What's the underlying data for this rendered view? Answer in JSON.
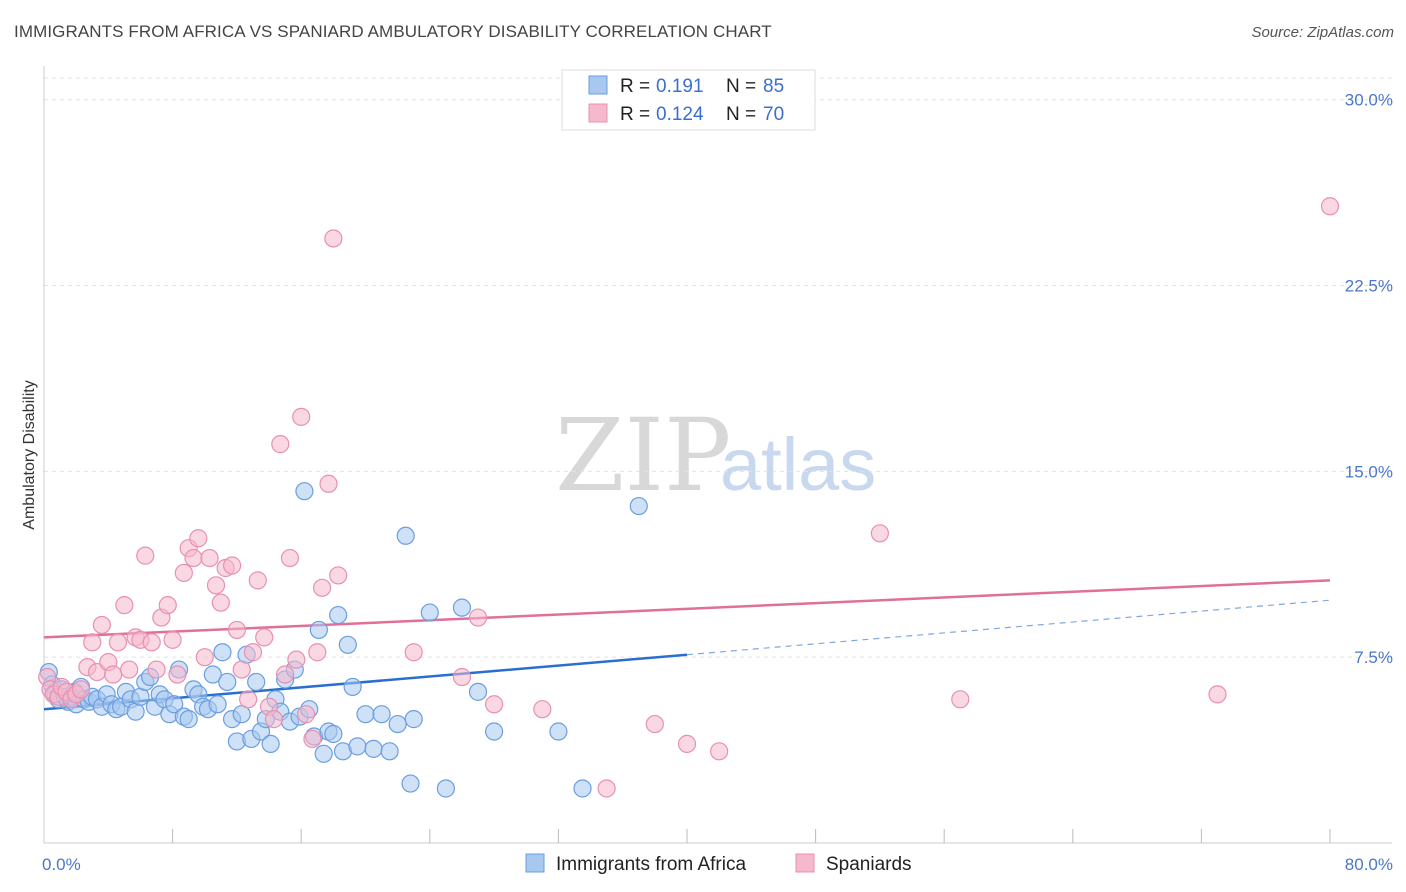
{
  "header": {
    "title": "IMMIGRANTS FROM AFRICA VS SPANIARD AMBULATORY DISABILITY CORRELATION CHART",
    "source": "Source: ZipAtlas.com"
  },
  "watermark": {
    "zip": "ZIP",
    "atlas": "atlas"
  },
  "legend": {
    "rows": [
      {
        "r_label": "R = ",
        "r_value": "0.191",
        "n_label": "N = ",
        "n_value": "85",
        "color": "#a8c8f0"
      },
      {
        "r_label": "R = ",
        "r_value": "0.124",
        "n_label": "N = ",
        "n_value": "70",
        "color": "#f5b8cc"
      }
    ]
  },
  "chart_data": {
    "type": "scatter",
    "title": "IMMIGRANTS FROM AFRICA VS SPANIARD AMBULATORY DISABILITY CORRELATION CHART",
    "xlabel": "",
    "ylabel": "Ambulatory Disability",
    "xlim": [
      0,
      80
    ],
    "ylim": [
      0,
      31.2
    ],
    "x_tick_labels": [
      {
        "value": 0,
        "label": "0.0%"
      },
      {
        "value": 80,
        "label": "80.0%"
      }
    ],
    "y_ticks": [
      {
        "value": 7.5,
        "label": "7.5%"
      },
      {
        "value": 15.0,
        "label": "15.0%"
      },
      {
        "value": 22.5,
        "label": "22.5%"
      },
      {
        "value": 30.0,
        "label": "30.0%"
      }
    ],
    "x_minor_ticks": [
      8,
      16,
      24,
      32,
      40,
      48,
      56,
      64,
      72,
      80
    ],
    "grid": true,
    "series": [
      {
        "name": "Immigrants from Africa",
        "color": "#a8c8f0",
        "stroke": "#6a9ee0",
        "trend": {
          "x0": 0,
          "y0": 5.4,
          "x1": 40,
          "y1": 7.6,
          "solid_until": 40,
          "extend_to": 80,
          "y_end": 9.8,
          "color": "#2a6fcf"
        },
        "points": [
          [
            0.3,
            6.9
          ],
          [
            0.5,
            6.4
          ],
          [
            0.7,
            6.0
          ],
          [
            0.9,
            5.8
          ],
          [
            1.1,
            6.2
          ],
          [
            1.3,
            5.9
          ],
          [
            1.5,
            5.7
          ],
          [
            1.7,
            5.9
          ],
          [
            1.9,
            6.1
          ],
          [
            2.0,
            5.6
          ],
          [
            2.3,
            6.3
          ],
          [
            2.5,
            5.8
          ],
          [
            2.8,
            5.7
          ],
          [
            3.0,
            5.9
          ],
          [
            3.3,
            5.8
          ],
          [
            3.6,
            5.5
          ],
          [
            3.9,
            6.0
          ],
          [
            4.2,
            5.6
          ],
          [
            4.5,
            5.4
          ],
          [
            4.8,
            5.5
          ],
          [
            5.1,
            6.1
          ],
          [
            5.4,
            5.8
          ],
          [
            5.7,
            5.3
          ],
          [
            6.0,
            5.9
          ],
          [
            6.3,
            6.5
          ],
          [
            6.6,
            6.7
          ],
          [
            6.9,
            5.5
          ],
          [
            7.2,
            6.0
          ],
          [
            7.5,
            5.8
          ],
          [
            7.8,
            5.2
          ],
          [
            8.1,
            5.6
          ],
          [
            8.4,
            7.0
          ],
          [
            8.7,
            5.1
          ],
          [
            9.0,
            5.0
          ],
          [
            9.3,
            6.2
          ],
          [
            9.6,
            6.0
          ],
          [
            9.9,
            5.5
          ],
          [
            10.2,
            5.4
          ],
          [
            10.5,
            6.8
          ],
          [
            10.8,
            5.6
          ],
          [
            11.1,
            7.7
          ],
          [
            11.4,
            6.5
          ],
          [
            11.7,
            5.0
          ],
          [
            12.0,
            4.1
          ],
          [
            12.3,
            5.2
          ],
          [
            12.6,
            7.6
          ],
          [
            12.9,
            4.2
          ],
          [
            13.2,
            6.5
          ],
          [
            13.5,
            4.5
          ],
          [
            13.8,
            5.0
          ],
          [
            14.1,
            4.0
          ],
          [
            14.4,
            5.8
          ],
          [
            14.7,
            5.3
          ],
          [
            15.0,
            6.6
          ],
          [
            15.3,
            4.9
          ],
          [
            15.6,
            7.0
          ],
          [
            15.9,
            5.1
          ],
          [
            16.2,
            14.2
          ],
          [
            16.5,
            5.4
          ],
          [
            16.8,
            4.3
          ],
          [
            17.1,
            8.6
          ],
          [
            17.4,
            3.6
          ],
          [
            17.7,
            4.5
          ],
          [
            18.0,
            4.4
          ],
          [
            18.3,
            9.2
          ],
          [
            18.6,
            3.7
          ],
          [
            18.9,
            8.0
          ],
          [
            19.2,
            6.3
          ],
          [
            19.5,
            3.9
          ],
          [
            20.0,
            5.2
          ],
          [
            20.5,
            3.8
          ],
          [
            21.0,
            5.2
          ],
          [
            21.5,
            3.7
          ],
          [
            22.0,
            4.8
          ],
          [
            22.5,
            12.4
          ],
          [
            22.8,
            2.4
          ],
          [
            23.0,
            5.0
          ],
          [
            24.0,
            9.3
          ],
          [
            25.0,
            2.2
          ],
          [
            26.0,
            9.5
          ],
          [
            27.0,
            6.1
          ],
          [
            28.0,
            4.5
          ],
          [
            32.0,
            4.5
          ],
          [
            33.5,
            2.2
          ],
          [
            37.0,
            13.6
          ]
        ]
      },
      {
        "name": "Spaniards",
        "color": "#f5b8cc",
        "stroke": "#e890b0",
        "trend": {
          "x0": 0,
          "y0": 8.3,
          "x1": 80,
          "y1": 10.6,
          "color": "#e0709a"
        },
        "points": [
          [
            0.2,
            6.7
          ],
          [
            0.4,
            6.2
          ],
          [
            0.6,
            6.0
          ],
          [
            0.9,
            5.9
          ],
          [
            1.1,
            6.3
          ],
          [
            1.4,
            6.1
          ],
          [
            1.7,
            5.8
          ],
          [
            2.0,
            6.0
          ],
          [
            2.3,
            6.2
          ],
          [
            2.7,
            7.1
          ],
          [
            3.0,
            8.1
          ],
          [
            3.3,
            6.9
          ],
          [
            3.6,
            8.8
          ],
          [
            4.0,
            7.3
          ],
          [
            4.3,
            6.8
          ],
          [
            4.6,
            8.1
          ],
          [
            5.0,
            9.6
          ],
          [
            5.3,
            7.0
          ],
          [
            5.7,
            8.3
          ],
          [
            6.0,
            8.2
          ],
          [
            6.3,
            11.6
          ],
          [
            6.7,
            8.1
          ],
          [
            7.0,
            7.0
          ],
          [
            7.3,
            9.1
          ],
          [
            7.7,
            9.6
          ],
          [
            8.0,
            8.2
          ],
          [
            8.3,
            6.8
          ],
          [
            8.7,
            10.9
          ],
          [
            9.0,
            11.9
          ],
          [
            9.3,
            11.5
          ],
          [
            9.6,
            12.3
          ],
          [
            10.0,
            7.5
          ],
          [
            10.3,
            11.5
          ],
          [
            10.7,
            10.4
          ],
          [
            11.0,
            9.7
          ],
          [
            11.3,
            11.1
          ],
          [
            11.7,
            11.2
          ],
          [
            12.0,
            8.6
          ],
          [
            12.3,
            7.0
          ],
          [
            12.7,
            5.8
          ],
          [
            13.0,
            7.7
          ],
          [
            13.3,
            10.6
          ],
          [
            13.7,
            8.3
          ],
          [
            14.0,
            5.5
          ],
          [
            14.3,
            5.0
          ],
          [
            14.7,
            16.1
          ],
          [
            15.0,
            6.8
          ],
          [
            15.3,
            11.5
          ],
          [
            15.7,
            7.4
          ],
          [
            16.0,
            17.2
          ],
          [
            16.3,
            5.2
          ],
          [
            16.7,
            4.2
          ],
          [
            17.0,
            7.7
          ],
          [
            17.3,
            10.3
          ],
          [
            17.7,
            14.5
          ],
          [
            18.0,
            24.4
          ],
          [
            18.3,
            10.8
          ],
          [
            23.0,
            7.7
          ],
          [
            26.0,
            6.7
          ],
          [
            27.0,
            9.1
          ],
          [
            28.0,
            5.6
          ],
          [
            31.0,
            5.4
          ],
          [
            35.0,
            2.2
          ],
          [
            38.0,
            4.8
          ],
          [
            40.0,
            4.0
          ],
          [
            42.0,
            3.7
          ],
          [
            52.0,
            12.5
          ],
          [
            57.0,
            5.8
          ],
          [
            80.0,
            25.7
          ],
          [
            73.0,
            6.0
          ]
        ]
      }
    ]
  },
  "bottom_legend": [
    {
      "label": "Immigrants from Africa",
      "color": "#a8c8f0"
    },
    {
      "label": "Spaniards",
      "color": "#f5b8cc"
    }
  ]
}
